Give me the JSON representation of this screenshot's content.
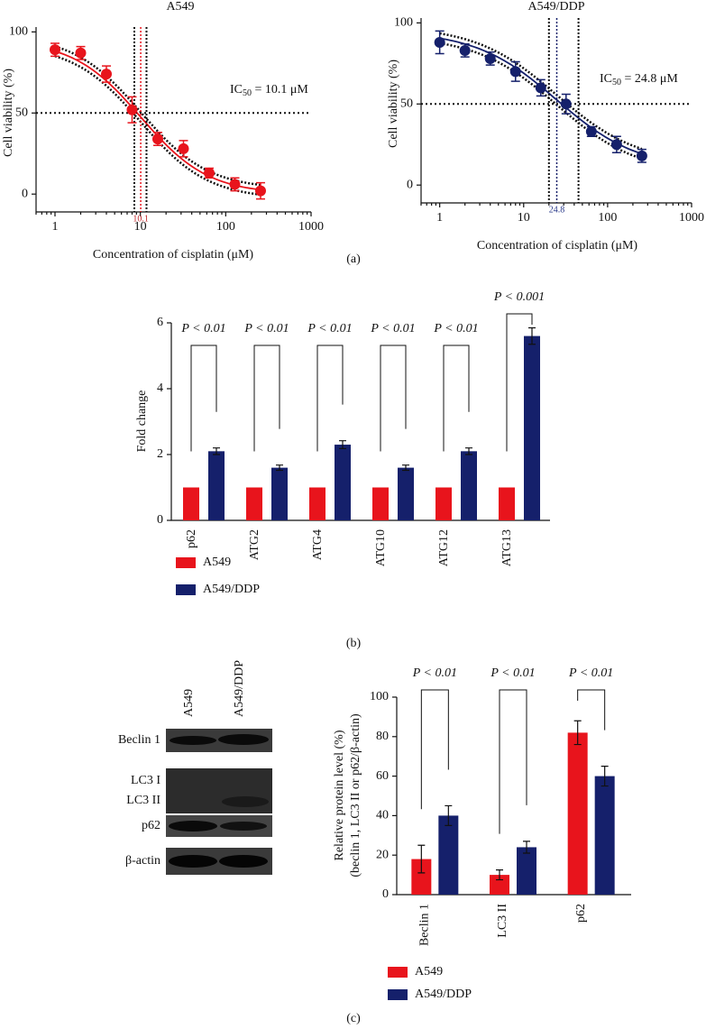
{
  "panels": [
    "(a)",
    "(b)",
    "(c)"
  ],
  "blot": {
    "lanes": [
      "A549",
      "A549/DDP"
    ],
    "rows": [
      "Beclin 1",
      "LC3 I",
      "LC3 II",
      "p62",
      "β-actin"
    ]
  },
  "chart_data": [
    {
      "type": "scatter",
      "title": "A549",
      "x_label": "Concentration of cisplatin (μM)",
      "y_label": "Cell viability (%)",
      "x_scale": "log",
      "xlim": [
        0.6,
        1000
      ],
      "xticks": [
        1,
        10,
        100,
        1000
      ],
      "ylim": [
        -11,
        103
      ],
      "yticks": [
        0,
        50,
        100
      ],
      "series": [
        {
          "color": "#e8141c",
          "x": [
            1,
            2,
            4,
            8,
            16,
            32,
            64,
            128,
            256
          ],
          "values": [
            89,
            87,
            74,
            52,
            34,
            28,
            13,
            6,
            2
          ],
          "errors": [
            4,
            4,
            5,
            8,
            4,
            5,
            3,
            4,
            5
          ]
        }
      ],
      "ic50": 10.1,
      "ic50_ci": [
        8.5,
        11.8
      ],
      "threshold": 50,
      "fit": {
        "top": 95,
        "bottom": 0,
        "hill": 1.1,
        "band": 3
      },
      "annotation": {
        "main": "IC",
        "sub": "50",
        "rest": " = 10.1 μM"
      }
    },
    {
      "type": "scatter",
      "title": "A549/DDP",
      "x_label": "Concentration of cisplatin (μM)",
      "y_label": "Cell viability (%)",
      "x_scale": "log",
      "xlim": [
        0.6,
        1000
      ],
      "xticks": [
        1,
        10,
        100,
        1000
      ],
      "ylim": [
        -11,
        103
      ],
      "yticks": [
        0,
        50,
        100
      ],
      "series": [
        {
          "color": "#15206b",
          "x": [
            1,
            2,
            4,
            8,
            16,
            32,
            64,
            128,
            256
          ],
          "values": [
            88,
            83,
            78,
            70,
            60,
            50,
            33,
            25,
            18
          ],
          "errors": [
            7,
            4,
            4,
            6,
            5,
            6,
            3,
            5,
            4
          ]
        }
      ],
      "ic50": 24.8,
      "ic50_ci": [
        20,
        45
      ],
      "threshold": 50,
      "fit": {
        "top": 95,
        "bottom": 10,
        "hill": 0.9,
        "band": 3
      },
      "annotation": {
        "main": "IC",
        "sub": "50",
        "rest": " = 24.8 μM"
      }
    },
    {
      "type": "bar",
      "y_label": "Fold change",
      "categories": [
        "p62",
        "ATG2",
        "ATG4",
        "ATG10",
        "ATG12",
        "ATG13"
      ],
      "ylim": [
        0,
        6
      ],
      "yticks": [
        0,
        2,
        4,
        6
      ],
      "legend": "bottom-left",
      "series": [
        {
          "name": "A549",
          "color": "#e8141c",
          "values": [
            1,
            1,
            1,
            1,
            1,
            1
          ]
        },
        {
          "name": "A549/DDP",
          "color": "#15206b",
          "values": [
            2.1,
            1.6,
            2.3,
            1.6,
            2.1,
            5.6
          ],
          "errors": [
            0.1,
            0.08,
            0.12,
            0.08,
            0.1,
            0.25
          ]
        }
      ],
      "annotations": [
        "P < 0.01",
        "P < 0.01",
        "P < 0.01",
        "P < 0.01",
        "P < 0.01",
        "P < 0.001"
      ]
    },
    {
      "type": "bar",
      "y_label": [
        "Relative protein level (%)",
        "(beclin 1, LC3 II or p62/β-actin)"
      ],
      "categories": [
        "Beclin 1",
        "LC3 II",
        "p62"
      ],
      "ylim": [
        0,
        100
      ],
      "yticks": [
        0,
        20,
        40,
        60,
        80,
        100
      ],
      "legend": "bottom-left",
      "series": [
        {
          "name": "A549",
          "color": "#e8141c",
          "values": [
            18,
            10,
            82
          ],
          "errors": [
            7,
            2.5,
            6
          ]
        },
        {
          "name": "A549/DDP",
          "color": "#15206b",
          "values": [
            40,
            24,
            60
          ],
          "errors": [
            5,
            3,
            5
          ]
        }
      ],
      "annotations": [
        "P < 0.01",
        "P < 0.01",
        "P < 0.01"
      ]
    }
  ]
}
